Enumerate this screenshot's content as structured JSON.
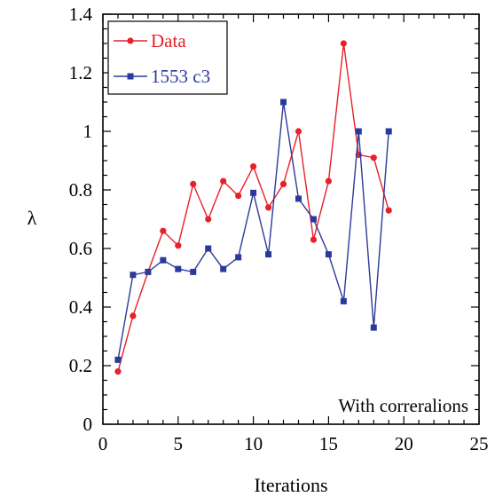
{
  "chart_data": {
    "type": "line",
    "title": "",
    "xlabel": "Iterations",
    "ylabel": "λ",
    "xlim": [
      0,
      25
    ],
    "ylim": [
      0,
      1.4
    ],
    "xticks": [
      0,
      5,
      10,
      15,
      20,
      25
    ],
    "yticks": [
      0,
      0.2,
      0.4,
      0.6,
      0.8,
      1,
      1.2,
      1.4
    ],
    "ytick_labels": [
      "0",
      "0.2",
      "0.4",
      "0.6",
      "0.8",
      "1",
      "1.2",
      "1.4"
    ],
    "grid": false,
    "legend_position": "top-left",
    "annotation": "With correralions",
    "series": [
      {
        "name": "Data",
        "color": "#e8202a",
        "marker": "circle",
        "x": [
          1,
          2,
          3,
          4,
          5,
          6,
          7,
          8,
          9,
          10,
          11,
          12,
          13,
          14,
          15,
          16,
          17,
          18,
          19
        ],
        "y": [
          0.18,
          0.37,
          0.52,
          0.66,
          0.61,
          0.82,
          0.7,
          0.83,
          0.78,
          0.88,
          0.74,
          0.82,
          1.0,
          0.63,
          0.83,
          1.3,
          0.92,
          0.91,
          0.73
        ]
      },
      {
        "name": "1553 c3",
        "color": "#2b3a9a",
        "marker": "square",
        "x": [
          1,
          2,
          3,
          4,
          5,
          6,
          7,
          8,
          9,
          10,
          11,
          12,
          13,
          14,
          15,
          16,
          17,
          18,
          19
        ],
        "y": [
          0.22,
          0.51,
          0.52,
          0.56,
          0.53,
          0.52,
          0.6,
          0.53,
          0.57,
          0.79,
          0.58,
          1.1,
          0.77,
          0.7,
          0.58,
          0.42,
          1.0,
          0.33,
          1.0
        ]
      }
    ]
  }
}
